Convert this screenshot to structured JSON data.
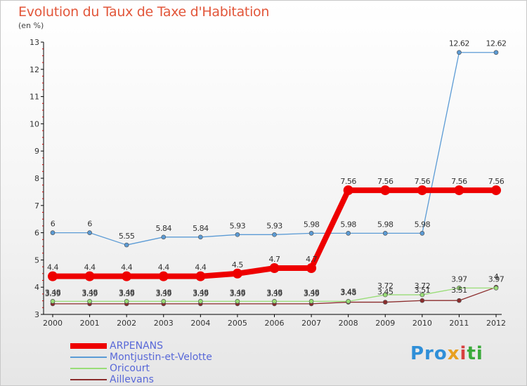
{
  "title": "Evolution du Taux de Taxe d'Habitation",
  "unit": "(en %)",
  "logo": [
    "Pro",
    "x",
    "i",
    "ti"
  ],
  "chart_data": {
    "type": "line",
    "x": [
      "2000",
      "2001",
      "2002",
      "2003",
      "2004",
      "2005",
      "2006",
      "2007",
      "2008",
      "2009",
      "2010",
      "2011",
      "2012"
    ],
    "ylim": [
      3,
      13
    ],
    "yticks": [
      3,
      4,
      5,
      6,
      7,
      8,
      9,
      10,
      11,
      12,
      13
    ],
    "grid": false,
    "legend_position": "bottom-left",
    "series": [
      {
        "name": "ARPENANS",
        "color": "#ee0000",
        "values": [
          4.4,
          4.4,
          4.4,
          4.4,
          4.4,
          4.5,
          4.7,
          4.7,
          7.56,
          7.56,
          7.56,
          7.56,
          7.56
        ],
        "labels": [
          "4.4",
          "4.4",
          "4.4",
          "4.4",
          "4.4",
          "4.5",
          "4.7",
          "4.7",
          "7.56",
          "7.56",
          "7.56",
          "7.56",
          "7.56"
        ]
      },
      {
        "name": "Montjustin-et-Velotte",
        "color": "#5b9bd5",
        "values": [
          6,
          6,
          5.55,
          5.84,
          5.84,
          5.93,
          5.93,
          5.98,
          5.98,
          5.98,
          5.98,
          12.62,
          12.62
        ],
        "labels": [
          "6",
          "6",
          "5.55",
          "5.84",
          "5.84",
          "5.93",
          "5.93",
          "5.98",
          "5.98",
          "5.98",
          "5.98",
          "12.62",
          "12.62"
        ]
      },
      {
        "name": "Oricourt",
        "color": "#99dd77",
        "values": [
          3.48,
          3.48,
          3.48,
          3.48,
          3.48,
          3.48,
          3.48,
          3.48,
          3.48,
          3.72,
          3.72,
          3.97,
          3.97
        ],
        "labels": [
          "3.48",
          "3.48",
          "3.48",
          "3.48",
          "3.48",
          "3.48",
          "3.48",
          "3.48",
          "3.48",
          "3.72",
          "3.72",
          "3.97",
          "3.97"
        ]
      },
      {
        "name": "Aillevans",
        "color": "#8b2c2c",
        "values": [
          3.39,
          3.39,
          3.39,
          3.39,
          3.39,
          3.39,
          3.39,
          3.39,
          3.45,
          3.45,
          3.51,
          3.51,
          4
        ],
        "labels": [
          "3.39",
          "3.39",
          "3.39",
          "3.39",
          "3.39",
          "3.39",
          "3.39",
          "3.39",
          "3.45",
          "3.45",
          "3.51",
          "3.51",
          "4"
        ]
      }
    ]
  }
}
